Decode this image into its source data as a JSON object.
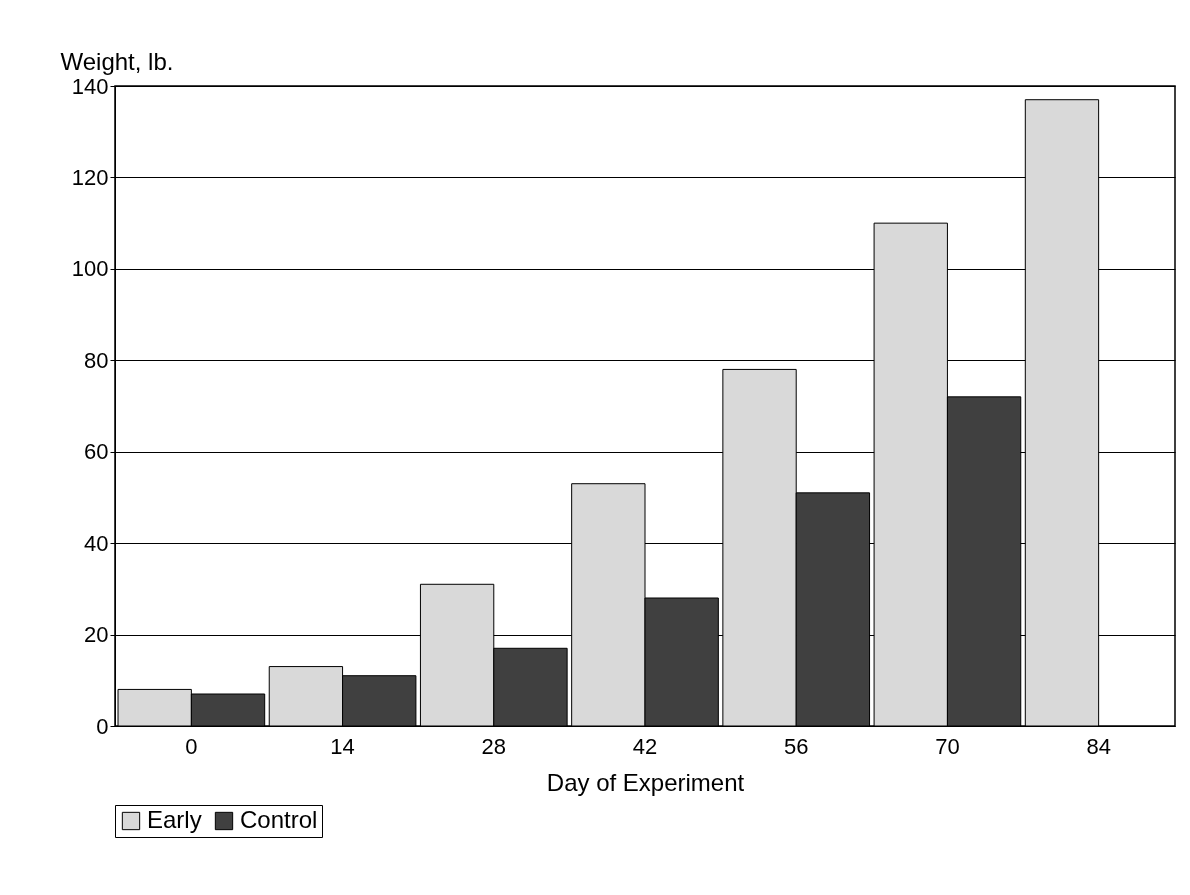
{
  "chart_data": {
    "type": "bar",
    "xlabel": "Day of Experiment",
    "ylabel": "Weight, lb.",
    "categories": [
      "0",
      "14",
      "28",
      "42",
      "56",
      "70",
      "84"
    ],
    "series": [
      {
        "name": "Early",
        "color": "#d9d9d9",
        "values": [
          8,
          13,
          31,
          53,
          78,
          110,
          137
        ]
      },
      {
        "name": "Control",
        "color": "#404040",
        "values": [
          7,
          11,
          17,
          28,
          51,
          72,
          null
        ]
      }
    ],
    "ylim": [
      0,
      140
    ],
    "yticks": [
      0,
      20,
      40,
      60,
      80,
      100,
      120,
      140
    ],
    "grid": "y",
    "legend": "bottom"
  }
}
